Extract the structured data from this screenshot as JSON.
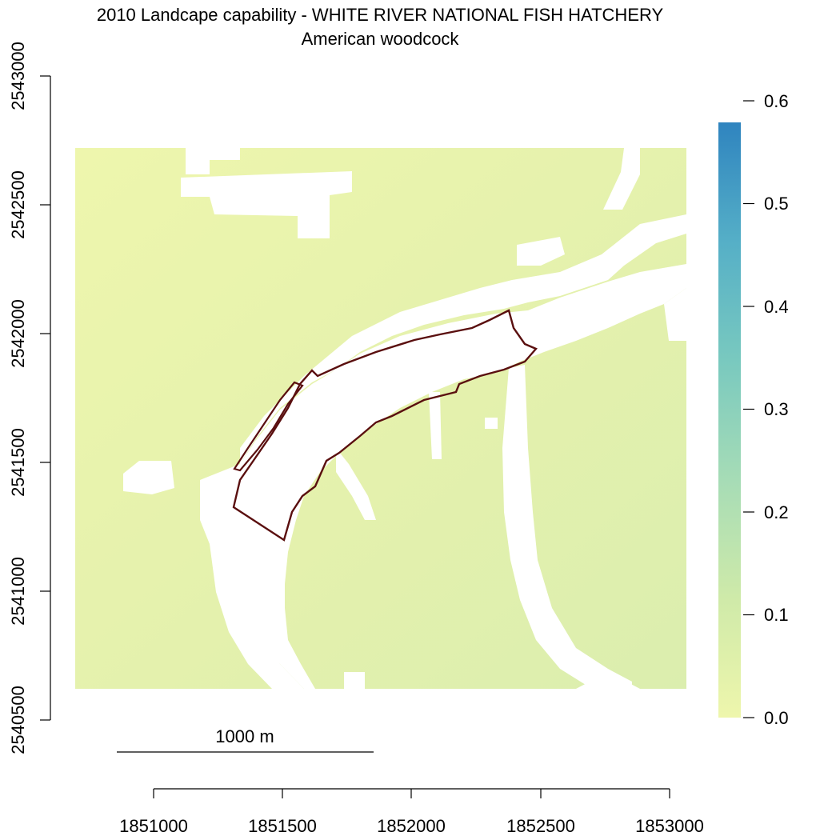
{
  "title": "2010 Landcape capability - WHITE RIVER NATIONAL FISH HATCHERY",
  "subtitle": "American woodcock",
  "map": {
    "x_ticks": [
      "1851000",
      "1851500",
      "1852000",
      "1852500",
      "1853000"
    ],
    "y_ticks": [
      "2540500",
      "2541000",
      "2541500",
      "2542000",
      "2542500",
      "2543000"
    ],
    "scale_bar_label": "1000 m",
    "boundary_color": "#5a0f0f",
    "water_color": "#ffffff"
  },
  "legend": {
    "tick_labels": [
      "0.0",
      "0.1",
      "0.2",
      "0.3",
      "0.4",
      "0.5",
      "0.6"
    ],
    "colors": [
      "#eef6ac",
      "#cfeaa9",
      "#a6dcb6",
      "#79c9bf",
      "#55afc7",
      "#2f84bf"
    ]
  }
}
